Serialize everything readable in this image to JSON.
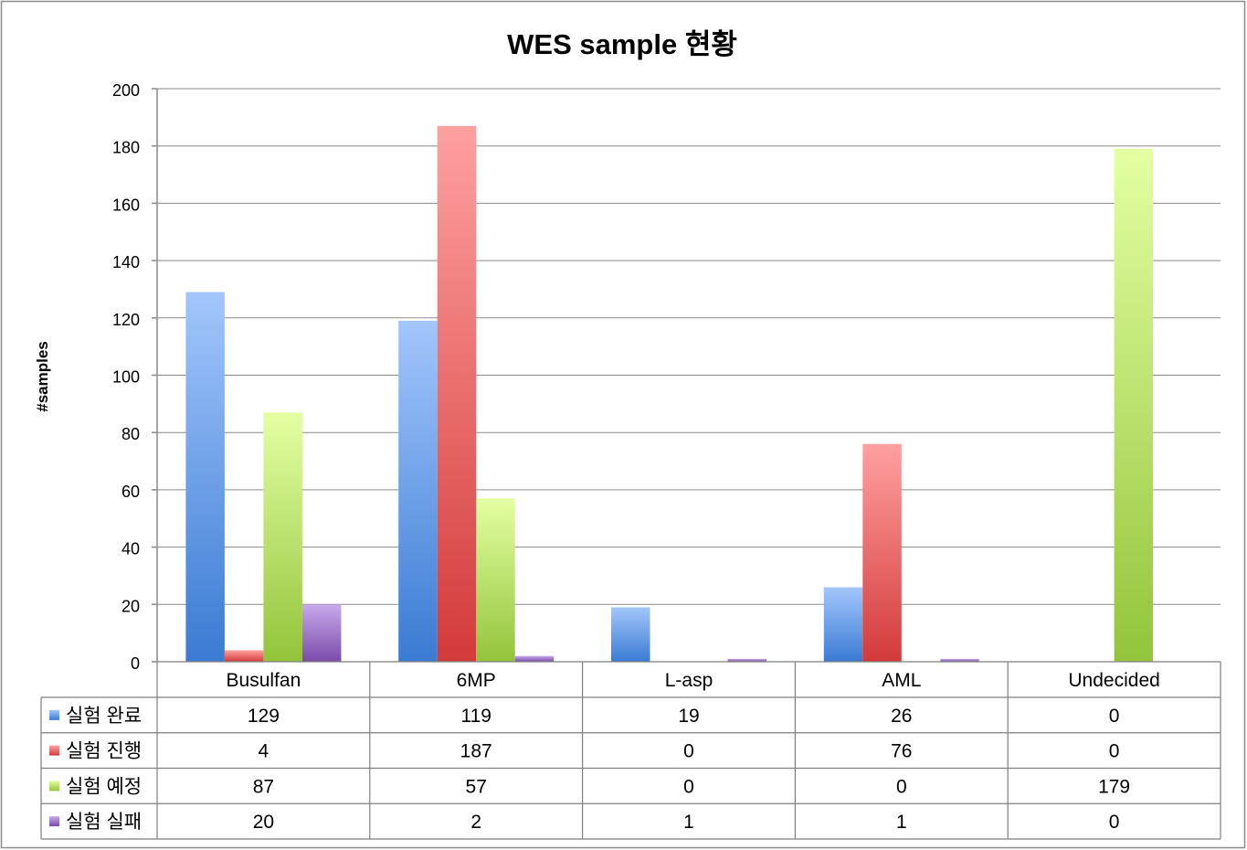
{
  "chart_data": {
    "type": "bar",
    "title": "WES sample 현황",
    "xlabel": "",
    "ylabel": "#samples",
    "ylim": [
      0,
      200
    ],
    "yticks": [
      0,
      20,
      40,
      60,
      80,
      100,
      120,
      140,
      160,
      180,
      200
    ],
    "categories": [
      "Busulfan",
      "6MP",
      "L-asp",
      "AML",
      "Undecided"
    ],
    "series": [
      {
        "name": "실험 완료",
        "values": [
          129,
          119,
          19,
          26,
          0
        ],
        "colors": [
          "#a3c6fc",
          "#3a7bd3"
        ]
      },
      {
        "name": "실험 진행",
        "values": [
          4,
          187,
          0,
          76,
          0
        ],
        "colors": [
          "#ffa0a0",
          "#d33a3a"
        ]
      },
      {
        "name": "실험 예정",
        "values": [
          87,
          57,
          0,
          0,
          179
        ],
        "colors": [
          "#e4ffa2",
          "#93c43b"
        ]
      },
      {
        "name": "실험 실패",
        "values": [
          20,
          2,
          1,
          1,
          0
        ],
        "colors": [
          "#c9a9ec",
          "#7a4ca9"
        ]
      }
    ],
    "grid": true,
    "data_table": true,
    "legend": "data-table"
  }
}
